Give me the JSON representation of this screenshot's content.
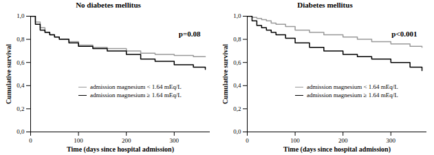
{
  "chart_data": [
    {
      "type": "line",
      "title": "No diabetes mellitus",
      "annotation": "p=0.08",
      "xlabel": "Time (days since hospital admission)",
      "ylabel": "Cumulative survival",
      "x": [
        0,
        10,
        20,
        30,
        40,
        50,
        60,
        80,
        100,
        130,
        160,
        200,
        230,
        260,
        300,
        340,
        365
      ],
      "series": [
        {
          "name": "admission magnesium < 1.64 mEq/L",
          "color": "#999999",
          "values": [
            1.0,
            0.95,
            0.9,
            0.86,
            0.84,
            0.82,
            0.8,
            0.78,
            0.75,
            0.73,
            0.72,
            0.7,
            0.68,
            0.67,
            0.66,
            0.65,
            0.65
          ]
        },
        {
          "name": "admission magnesium ≥ 1.64 mEq/L",
          "color": "#000000",
          "values": [
            1.0,
            0.93,
            0.88,
            0.86,
            0.84,
            0.82,
            0.8,
            0.77,
            0.74,
            0.72,
            0.7,
            0.67,
            0.63,
            0.61,
            0.58,
            0.56,
            0.54
          ]
        }
      ],
      "xlim": [
        0,
        375
      ],
      "xticks": [
        0,
        100,
        200,
        300
      ],
      "ylim": [
        0,
        1.0
      ],
      "yticks": [
        {
          "value": 0,
          "label": "0,0"
        },
        {
          "value": 0.2,
          "label": "0,2"
        },
        {
          "value": 0.4,
          "label": "0,4"
        },
        {
          "value": 0.6,
          "label": "0,6"
        },
        {
          "value": 0.8,
          "label": "0,8"
        },
        {
          "value": 1.0,
          "label": "1,0"
        }
      ],
      "legend": "center",
      "grid": false
    },
    {
      "type": "line",
      "title": "Diabetes mellitus",
      "annotation": "p<0.001",
      "xlabel": "Time (days since hospital admission)",
      "ylabel": "Cumulative survival",
      "x": [
        0,
        10,
        20,
        30,
        40,
        50,
        60,
        80,
        100,
        130,
        160,
        200,
        230,
        260,
        300,
        340,
        365
      ],
      "series": [
        {
          "name": "admission magnesium < 1.64 mEq/L",
          "color": "#999999",
          "values": [
            1.0,
            0.99,
            0.98,
            0.97,
            0.96,
            0.94,
            0.93,
            0.91,
            0.88,
            0.86,
            0.84,
            0.82,
            0.8,
            0.78,
            0.76,
            0.74,
            0.73
          ]
        },
        {
          "name": "admission magnesium ≥ 1.64 mEq/L",
          "color": "#000000",
          "values": [
            1.0,
            0.96,
            0.92,
            0.9,
            0.88,
            0.86,
            0.84,
            0.81,
            0.77,
            0.73,
            0.7,
            0.67,
            0.65,
            0.63,
            0.6,
            0.56,
            0.53
          ]
        }
      ],
      "xlim": [
        0,
        375
      ],
      "xticks": [
        0,
        100,
        200,
        300
      ],
      "ylim": [
        0,
        1.0
      ],
      "yticks": [
        {
          "value": 0,
          "label": "0,0"
        },
        {
          "value": 0.2,
          "label": "0,2"
        },
        {
          "value": 0.4,
          "label": "0,4"
        },
        {
          "value": 0.6,
          "label": "0,6"
        },
        {
          "value": 0.8,
          "label": "0,8"
        },
        {
          "value": 1.0,
          "label": "1,0"
        }
      ],
      "legend": "center",
      "grid": false
    }
  ]
}
